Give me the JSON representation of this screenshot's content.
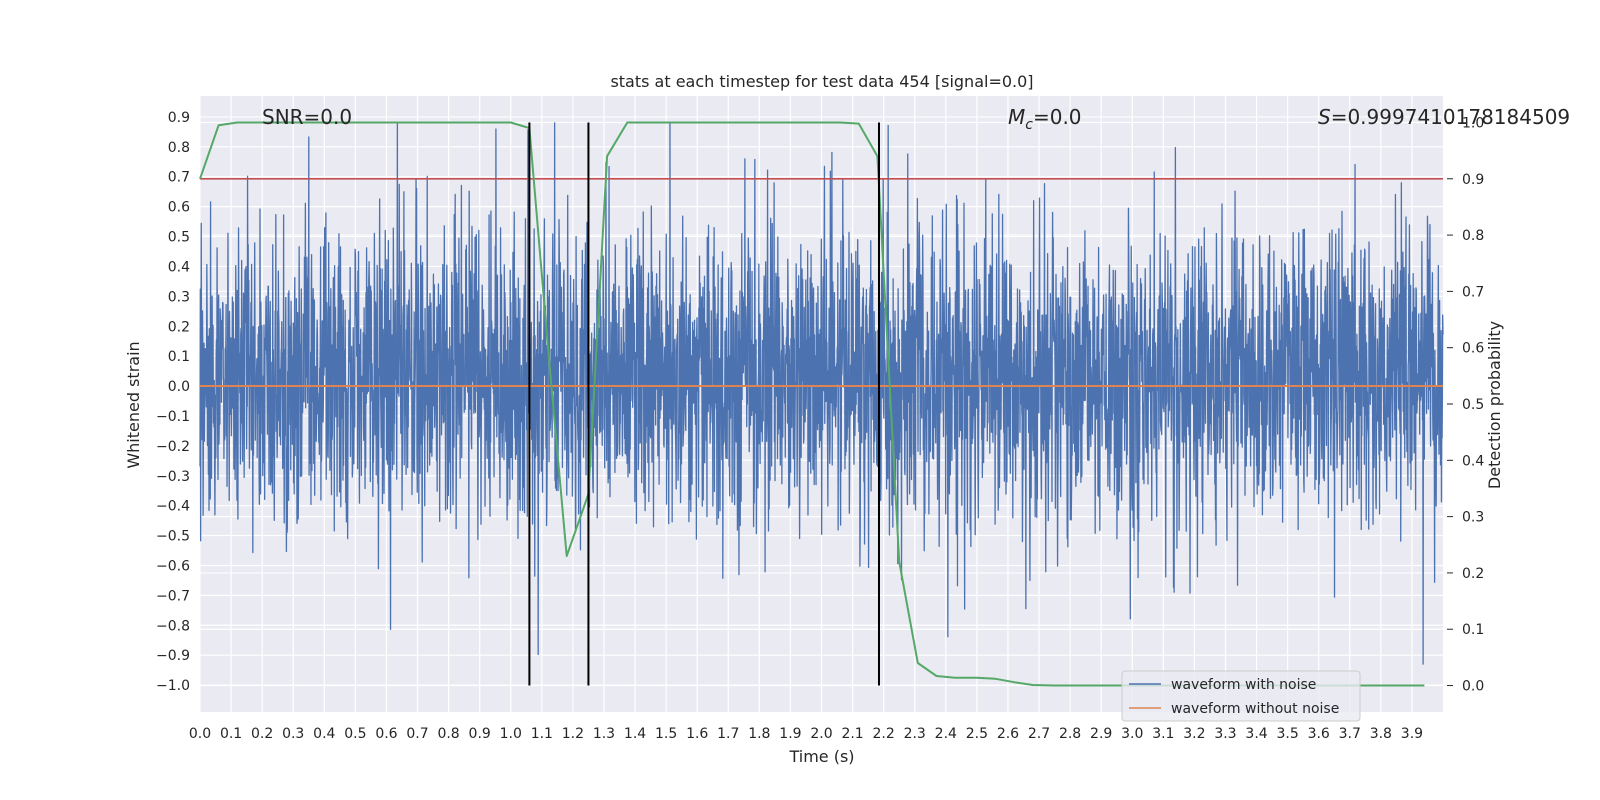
{
  "chart_data": {
    "type": "line",
    "title": "stats at each timestep for test data 454 [signal=0.0]",
    "xlabel": "Time (s)",
    "ylabel": "Whitened strain",
    "ylabel_right": "Detection probability",
    "xlim": [
      0.0,
      4.0
    ],
    "ylim": [
      -1.09,
      0.97
    ],
    "ylim_right": [
      -0.047,
      1.047
    ],
    "x_ticks": [
      "0.0",
      "0.1",
      "0.2",
      "0.3",
      "0.4",
      "0.5",
      "0.6",
      "0.7",
      "0.8",
      "0.9",
      "1.0",
      "1.1",
      "1.2",
      "1.3",
      "1.4",
      "1.5",
      "1.6",
      "1.7",
      "1.8",
      "1.9",
      "2.0",
      "2.1",
      "2.2",
      "2.3",
      "2.4",
      "2.5",
      "2.6",
      "2.7",
      "2.8",
      "2.9",
      "3.0",
      "3.1",
      "3.2",
      "3.3",
      "3.4",
      "3.5",
      "3.6",
      "3.7",
      "3.8",
      "3.9"
    ],
    "y_ticks": [
      "0.9",
      "0.8",
      "0.7",
      "0.6",
      "0.5",
      "0.4",
      "0.3",
      "0.2",
      "0.1",
      "0.0",
      "−0.1",
      "−0.2",
      "−0.3",
      "−0.4",
      "−0.5",
      "−0.6",
      "−0.7",
      "−0.8",
      "−0.9",
      "−1.0"
    ],
    "y_ticks_right": [
      "1.0",
      "0.9",
      "0.8",
      "0.7",
      "0.6",
      "0.5",
      "0.4",
      "0.3",
      "0.2",
      "0.1",
      "0.0"
    ],
    "annotations": {
      "snr": "SNR=0.0",
      "mc_symbol": "M",
      "mc_sub": "c",
      "mc_value": "=0.0",
      "s_symbol": "S",
      "s_value": "=0.9997410178184509"
    },
    "legend": {
      "position": "lower right",
      "entries": [
        "waveform with noise",
        "waveform without noise"
      ]
    },
    "series": [
      {
        "name": "waveform with noise",
        "color": "#4c72b0",
        "description": "dense whitened noise, roughly within [-0.7, 0.8] with spikes to 0.88 and -1.0",
        "n_samples": 4000,
        "seed": 454
      },
      {
        "name": "waveform without noise",
        "color": "#dd8452",
        "x": [
          0.0,
          4.0
        ],
        "y": [
          0.0,
          0.0
        ]
      },
      {
        "name": "detection probability",
        "axis": "right",
        "color": "#55a868",
        "x": [
          0.0,
          0.06,
          0.12,
          0.18,
          0.24,
          0.3,
          0.9,
          1.0,
          1.06,
          1.12,
          1.18,
          1.25,
          1.31,
          1.375,
          1.5,
          2.0,
          2.06,
          2.12,
          2.18,
          2.25,
          2.31,
          2.37,
          2.43,
          2.5,
          2.56,
          2.62,
          2.68,
          2.75,
          2.8,
          3.0,
          3.5,
          3.94
        ],
        "y": [
          0.9,
          0.995,
          1.0,
          1.0,
          1.0,
          1.0,
          1.0,
          1.0,
          0.99,
          0.6,
          0.23,
          0.34,
          0.94,
          1.0,
          1.0,
          1.0,
          1.0,
          0.998,
          0.94,
          0.22,
          0.04,
          0.017,
          0.014,
          0.014,
          0.012,
          0.006,
          0.001,
          0.0,
          0.0,
          0.0,
          0.0,
          0.0
        ]
      }
    ],
    "threshold_line": {
      "axis": "right",
      "y": 0.9,
      "color": "#c44e52"
    },
    "vertical_lines": {
      "x": [
        1.06,
        1.25,
        2.185
      ],
      "color": "#000000"
    }
  }
}
